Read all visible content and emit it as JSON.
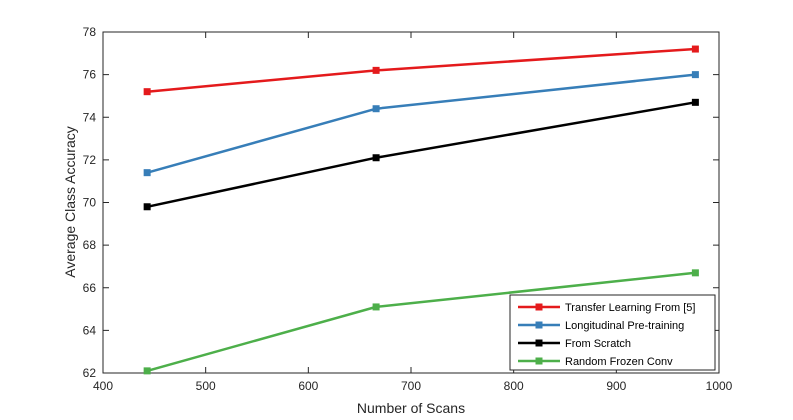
{
  "chart_data": {
    "type": "line",
    "title": "",
    "xlabel": "Number of Scans",
    "ylabel": "Average Class Accuracy",
    "xlim": [
      400,
      1000
    ],
    "ylim": [
      62,
      78
    ],
    "xticks": [
      400,
      500,
      600,
      700,
      800,
      900,
      1000
    ],
    "yticks": [
      62,
      64,
      66,
      68,
      70,
      72,
      74,
      76,
      78
    ],
    "grid": false,
    "legend_position": "bottom-right",
    "x": [
      443,
      666,
      977
    ],
    "series": [
      {
        "name": "Transfer Learning From [5]",
        "color": "#e41a1c",
        "values": [
          75.2,
          76.2,
          77.2
        ]
      },
      {
        "name": "Longitudinal Pre-training",
        "color": "#377eb8",
        "values": [
          71.4,
          74.4,
          76.0
        ]
      },
      {
        "name": "From Scratch",
        "color": "#000000",
        "values": [
          69.8,
          72.1,
          74.7
        ]
      },
      {
        "name": "Random Frozen Conv",
        "color": "#4daf4a",
        "values": [
          62.1,
          65.1,
          66.7
        ]
      }
    ]
  }
}
